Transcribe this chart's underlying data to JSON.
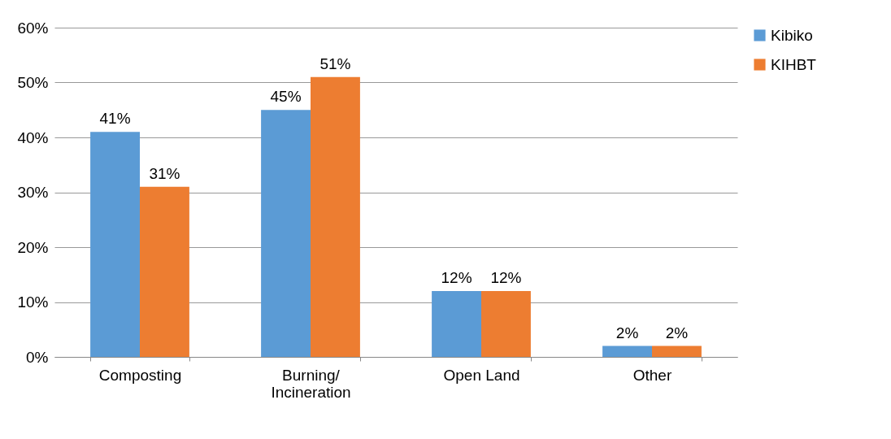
{
  "chart_data": {
    "type": "bar",
    "categories": [
      "Composting",
      "Burning/\nIncineration",
      "Open Land",
      "Other"
    ],
    "series": [
      {
        "name": "Kibiko",
        "color": "#5b9bd5",
        "values": [
          41,
          45,
          12,
          2
        ],
        "value_labels": [
          "41%",
          "45%",
          "12%",
          "2%"
        ]
      },
      {
        "name": "KIHBT",
        "color": "#ed7d31",
        "values": [
          31,
          51,
          12,
          2
        ],
        "value_labels": [
          "31%",
          "51%",
          "12%",
          "2%"
        ]
      }
    ],
    "ylim": [
      0,
      60
    ],
    "yticks": [
      {
        "value": 0,
        "label": "0%"
      },
      {
        "value": 10,
        "label": "10%"
      },
      {
        "value": 20,
        "label": "20%"
      },
      {
        "value": 30,
        "label": "30%"
      },
      {
        "value": 40,
        "label": "40%"
      },
      {
        "value": 50,
        "label": "50%"
      },
      {
        "value": 60,
        "label": "60%"
      }
    ],
    "grid": "y",
    "legend": "right"
  }
}
